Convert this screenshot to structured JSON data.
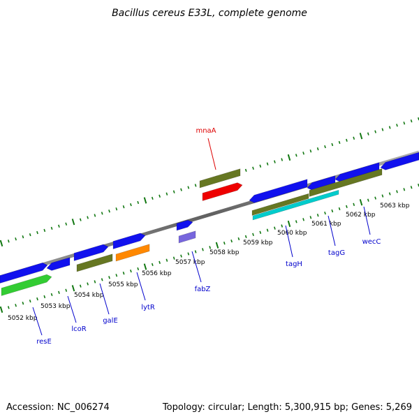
{
  "title": "Bacillus cereus E33L, complete genome",
  "footer": {
    "accession": "Accession: NC_006274",
    "topology": "Topology: circular; Length: 5,300,915 bp; Genes: 5,269"
  },
  "colors": {
    "backbone": "#7f7f7f",
    "ticks": "#117711",
    "label_default": "#0000cc",
    "label_highlight": "#dd0000"
  },
  "ticks": {
    "labels": [
      "5052 kbp",
      "5053 kbp",
      "5054 kbp",
      "5055 kbp",
      "5056 kbp",
      "5057 kbp",
      "5058 kbp",
      "5059 kbp",
      "5060 kbp",
      "5061 kbp",
      "5062 kbp",
      "5063 kbp"
    ]
  },
  "genes": [
    {
      "name": "resE",
      "color": "#0000cc"
    },
    {
      "name": "lcoR",
      "color": "#0000cc"
    },
    {
      "name": "galE",
      "color": "#0000cc"
    },
    {
      "name": "lytR",
      "color": "#0000cc"
    },
    {
      "name": "fabZ",
      "color": "#0000cc"
    },
    {
      "name": "mnaA",
      "color": "#dd0000"
    },
    {
      "name": "tagH",
      "color": "#0000cc"
    },
    {
      "name": "tagG",
      "color": "#0000cc"
    },
    {
      "name": "wecC",
      "color": "#0000cc"
    }
  ],
  "feature_colors": {
    "cds": "#1111ee",
    "cog_lightgreen": "#33cc33",
    "cog_olive": "#667722",
    "cog_orange": "#ff8800",
    "cog_red": "#ee0000",
    "cog_lavender": "#7766dd",
    "cog_cyan": "#00cccc"
  }
}
